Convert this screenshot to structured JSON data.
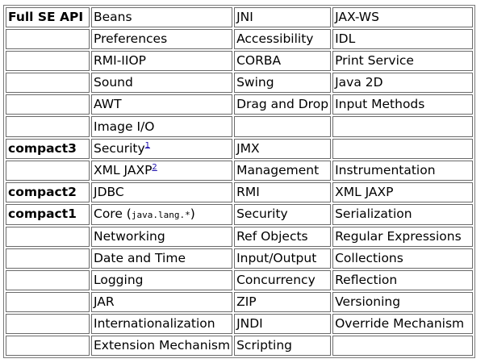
{
  "rows": [
    {
      "profile": "Full SE API",
      "cells": [
        {
          "text": "Beans"
        },
        {
          "text": "JNI"
        },
        {
          "text": "JAX-WS"
        }
      ]
    },
    {
      "profile": "",
      "cells": [
        {
          "text": "Preferences"
        },
        {
          "text": "Accessibility"
        },
        {
          "text": "IDL"
        }
      ]
    },
    {
      "profile": "",
      "cells": [
        {
          "text": "RMI-IIOP"
        },
        {
          "text": "CORBA"
        },
        {
          "text": "Print Service"
        }
      ]
    },
    {
      "profile": "",
      "cells": [
        {
          "text": "Sound"
        },
        {
          "text": "Swing"
        },
        {
          "text": "Java 2D"
        }
      ]
    },
    {
      "profile": "",
      "cells": [
        {
          "text": "AWT"
        },
        {
          "text": "Drag and Drop"
        },
        {
          "text": "Input Methods"
        }
      ]
    },
    {
      "profile": "",
      "cells": [
        {
          "text": "Image I/O"
        },
        {
          "text": ""
        },
        {
          "text": ""
        }
      ]
    },
    {
      "profile": "compact3",
      "cells": [
        {
          "text": "Security",
          "footnote": "1"
        },
        {
          "text": "JMX"
        },
        {
          "text": ""
        }
      ]
    },
    {
      "profile": "",
      "cells": [
        {
          "text": "XML JAXP",
          "footnote": "2"
        },
        {
          "text": "Management"
        },
        {
          "text": "Instrumentation"
        }
      ]
    },
    {
      "profile": "compact2",
      "cells": [
        {
          "text": "JDBC"
        },
        {
          "text": "RMI"
        },
        {
          "text": "XML JAXP"
        }
      ]
    },
    {
      "profile": "compact1",
      "cells": [
        {
          "text": "Core (",
          "code": "java.lang.*",
          "suffix": ")"
        },
        {
          "text": "Security"
        },
        {
          "text": "Serialization"
        }
      ]
    },
    {
      "profile": "",
      "cells": [
        {
          "text": "Networking"
        },
        {
          "text": "Ref Objects"
        },
        {
          "text": "Regular Expressions"
        }
      ]
    },
    {
      "profile": "",
      "cells": [
        {
          "text": "Date and Time"
        },
        {
          "text": "Input/Output"
        },
        {
          "text": "Collections"
        }
      ]
    },
    {
      "profile": "",
      "cells": [
        {
          "text": "Logging"
        },
        {
          "text": "Concurrency"
        },
        {
          "text": "Reflection"
        }
      ]
    },
    {
      "profile": "",
      "cells": [
        {
          "text": "JAR"
        },
        {
          "text": "ZIP"
        },
        {
          "text": "Versioning"
        }
      ]
    },
    {
      "profile": "",
      "cells": [
        {
          "text": "Internationalization"
        },
        {
          "text": "JNDI"
        },
        {
          "text": "Override Mechanism"
        }
      ]
    },
    {
      "profile": "",
      "cells": [
        {
          "text": "Extension Mechanism"
        },
        {
          "text": "Scripting"
        },
        {
          "text": ""
        }
      ]
    }
  ],
  "colors": {
    "footnote_link": "#1a0dab",
    "border": "#6a6a6a"
  }
}
